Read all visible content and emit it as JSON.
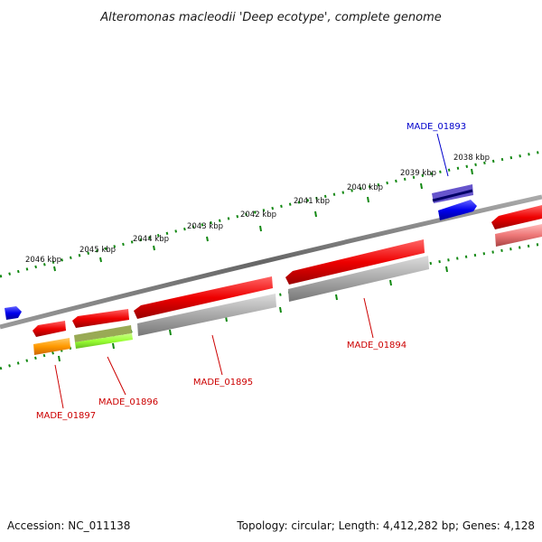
{
  "title": "Alteromonas macleodii 'Deep ecotype', complete genome",
  "footer": {
    "accession": "Accession: NC_011138",
    "summary": "Topology: circular; Length: 4,412,282 bp; Genes: 4,128"
  },
  "scale_labels": [
    "2038 kbp",
    "2039 kbp",
    "2040 kbp",
    "2041 kbp",
    "2042 kbp",
    "2043 kbp",
    "2044 kbp",
    "2045 kbp",
    "2046 kbp"
  ],
  "genes": [
    {
      "label": "MADE_01893",
      "color": "blue"
    },
    {
      "label": "MADE_01894",
      "color": "red"
    },
    {
      "label": "MADE_01895",
      "color": "red"
    },
    {
      "label": "MADE_01896",
      "color": "red"
    },
    {
      "label": "MADE_01897",
      "color": "red"
    }
  ],
  "colors": {
    "backbone": "#808080",
    "gene_red": "#ee0000",
    "gene_blue": "#0000ee",
    "cds_gray": "#b0b0b0",
    "tick_green": "#118811",
    "orange": "#ff9900",
    "lime": "#99ff33"
  }
}
